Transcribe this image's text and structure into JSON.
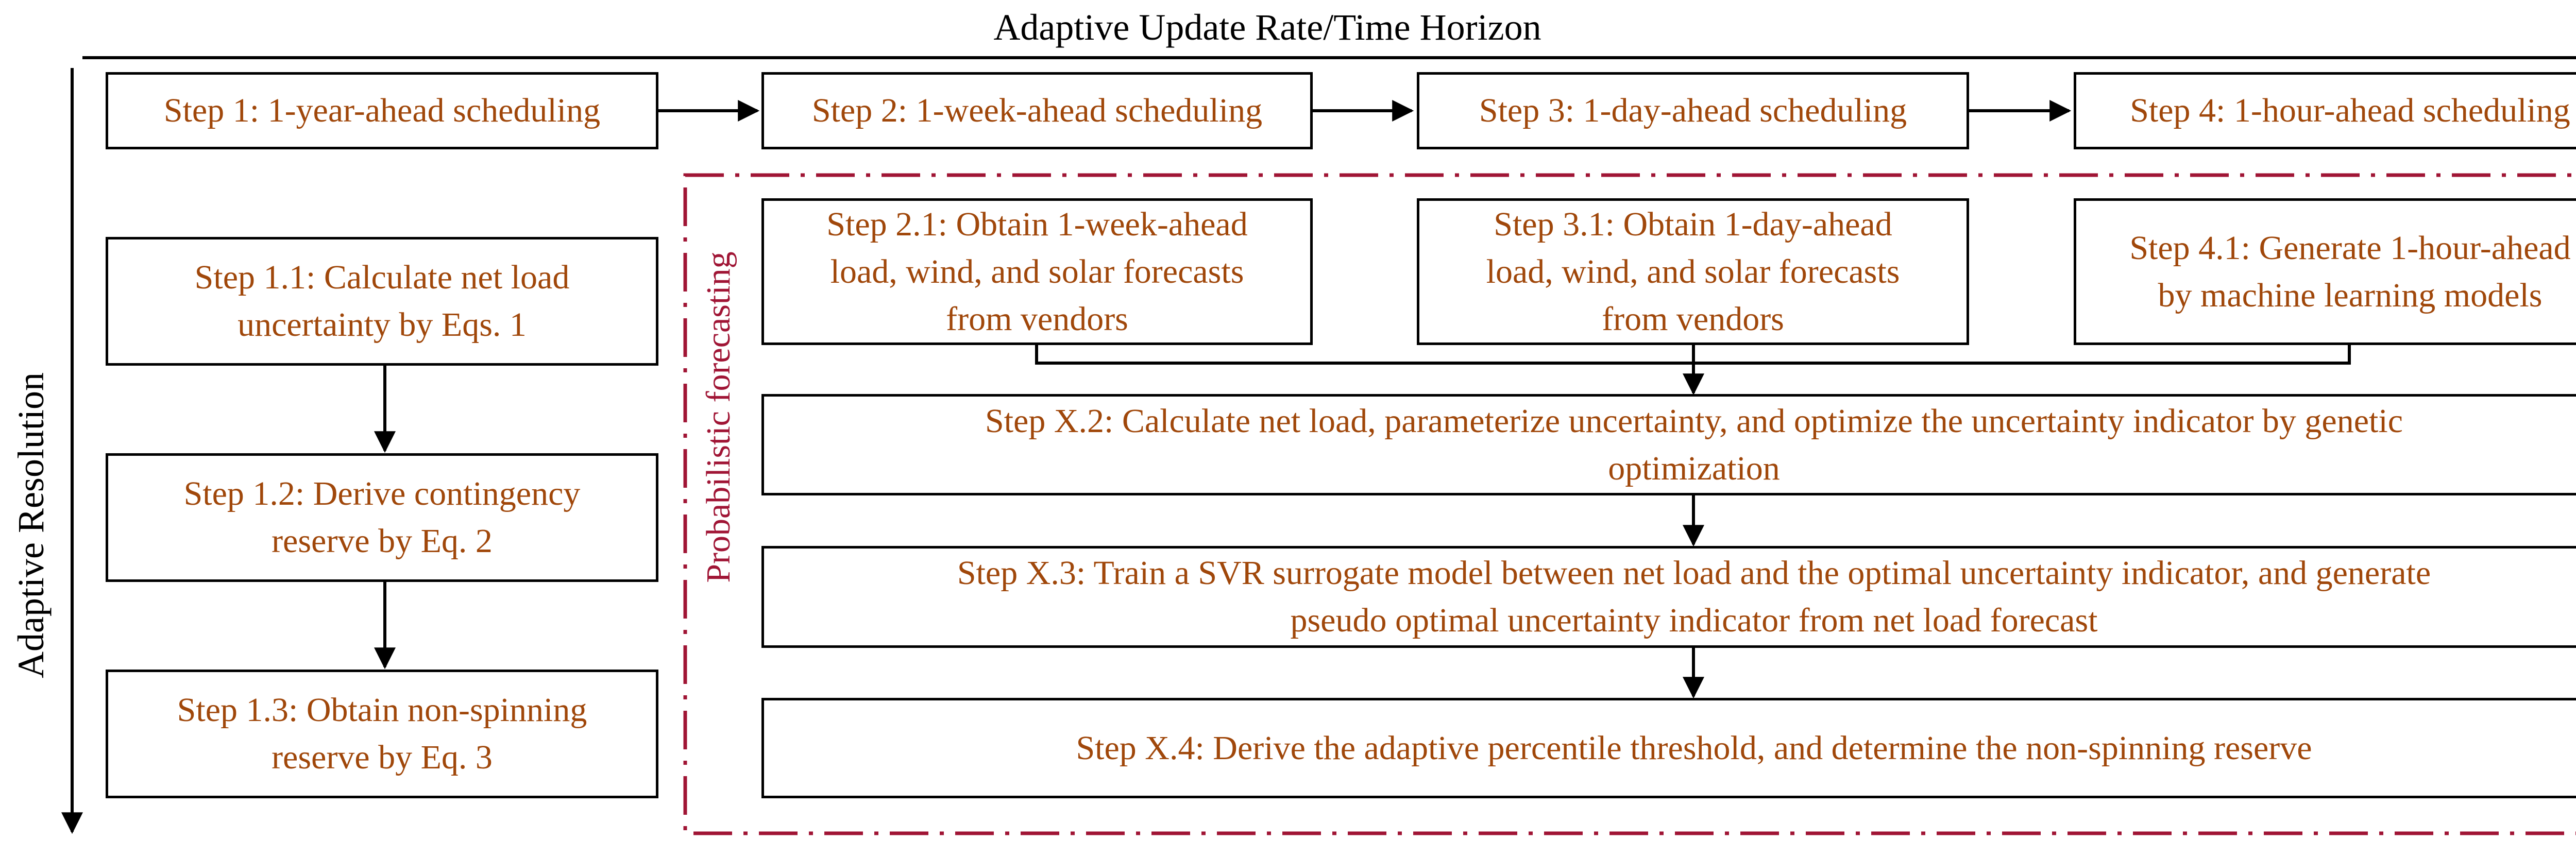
{
  "axes": {
    "top_label": "Adaptive Update Rate/Time Horizon",
    "side_label": "Adaptive Resolution"
  },
  "probabilistic_label": "Probabilistic forecasting",
  "colors": {
    "box_text": "#a0470a",
    "dashed_border": "#a01535",
    "lines": "#000000"
  },
  "steps": {
    "s1": "Step 1: 1-year-ahead scheduling",
    "s2": "Step 2: 1-week-ahead scheduling",
    "s3": "Step 3: 1-day-ahead scheduling",
    "s4": "Step 4: 1-hour-ahead scheduling",
    "s1_1": "Step 1.1: Calculate net load\nuncertainty by Eqs. 1",
    "s1_2": "Step 1.2: Derive contingency\nreserve by Eq. 2",
    "s1_3": "Step 1.3: Obtain non-spinning\nreserve by Eq. 3",
    "s2_1": "Step 2.1: Obtain 1-week-ahead\nload, wind, and solar forecasts\nfrom vendors",
    "s3_1": "Step 3.1: Obtain 1-day-ahead\nload, wind, and solar forecasts\nfrom vendors",
    "s4_1": "Step 4.1: Generate 1-hour-ahead\nby machine learning models",
    "sx_2": "Step X.2: Calculate net load, parameterize uncertainty, and optimize the uncertainty indicator by genetic\noptimization",
    "sx_3": "Step X.3: Train a SVR surrogate model between net load and the optimal uncertainty indicator, and generate\npseudo optimal uncertainty indicator from net load forecast",
    "sx_4": "Step X.4: Derive the adaptive percentile threshold, and determine the non-spinning reserve"
  }
}
